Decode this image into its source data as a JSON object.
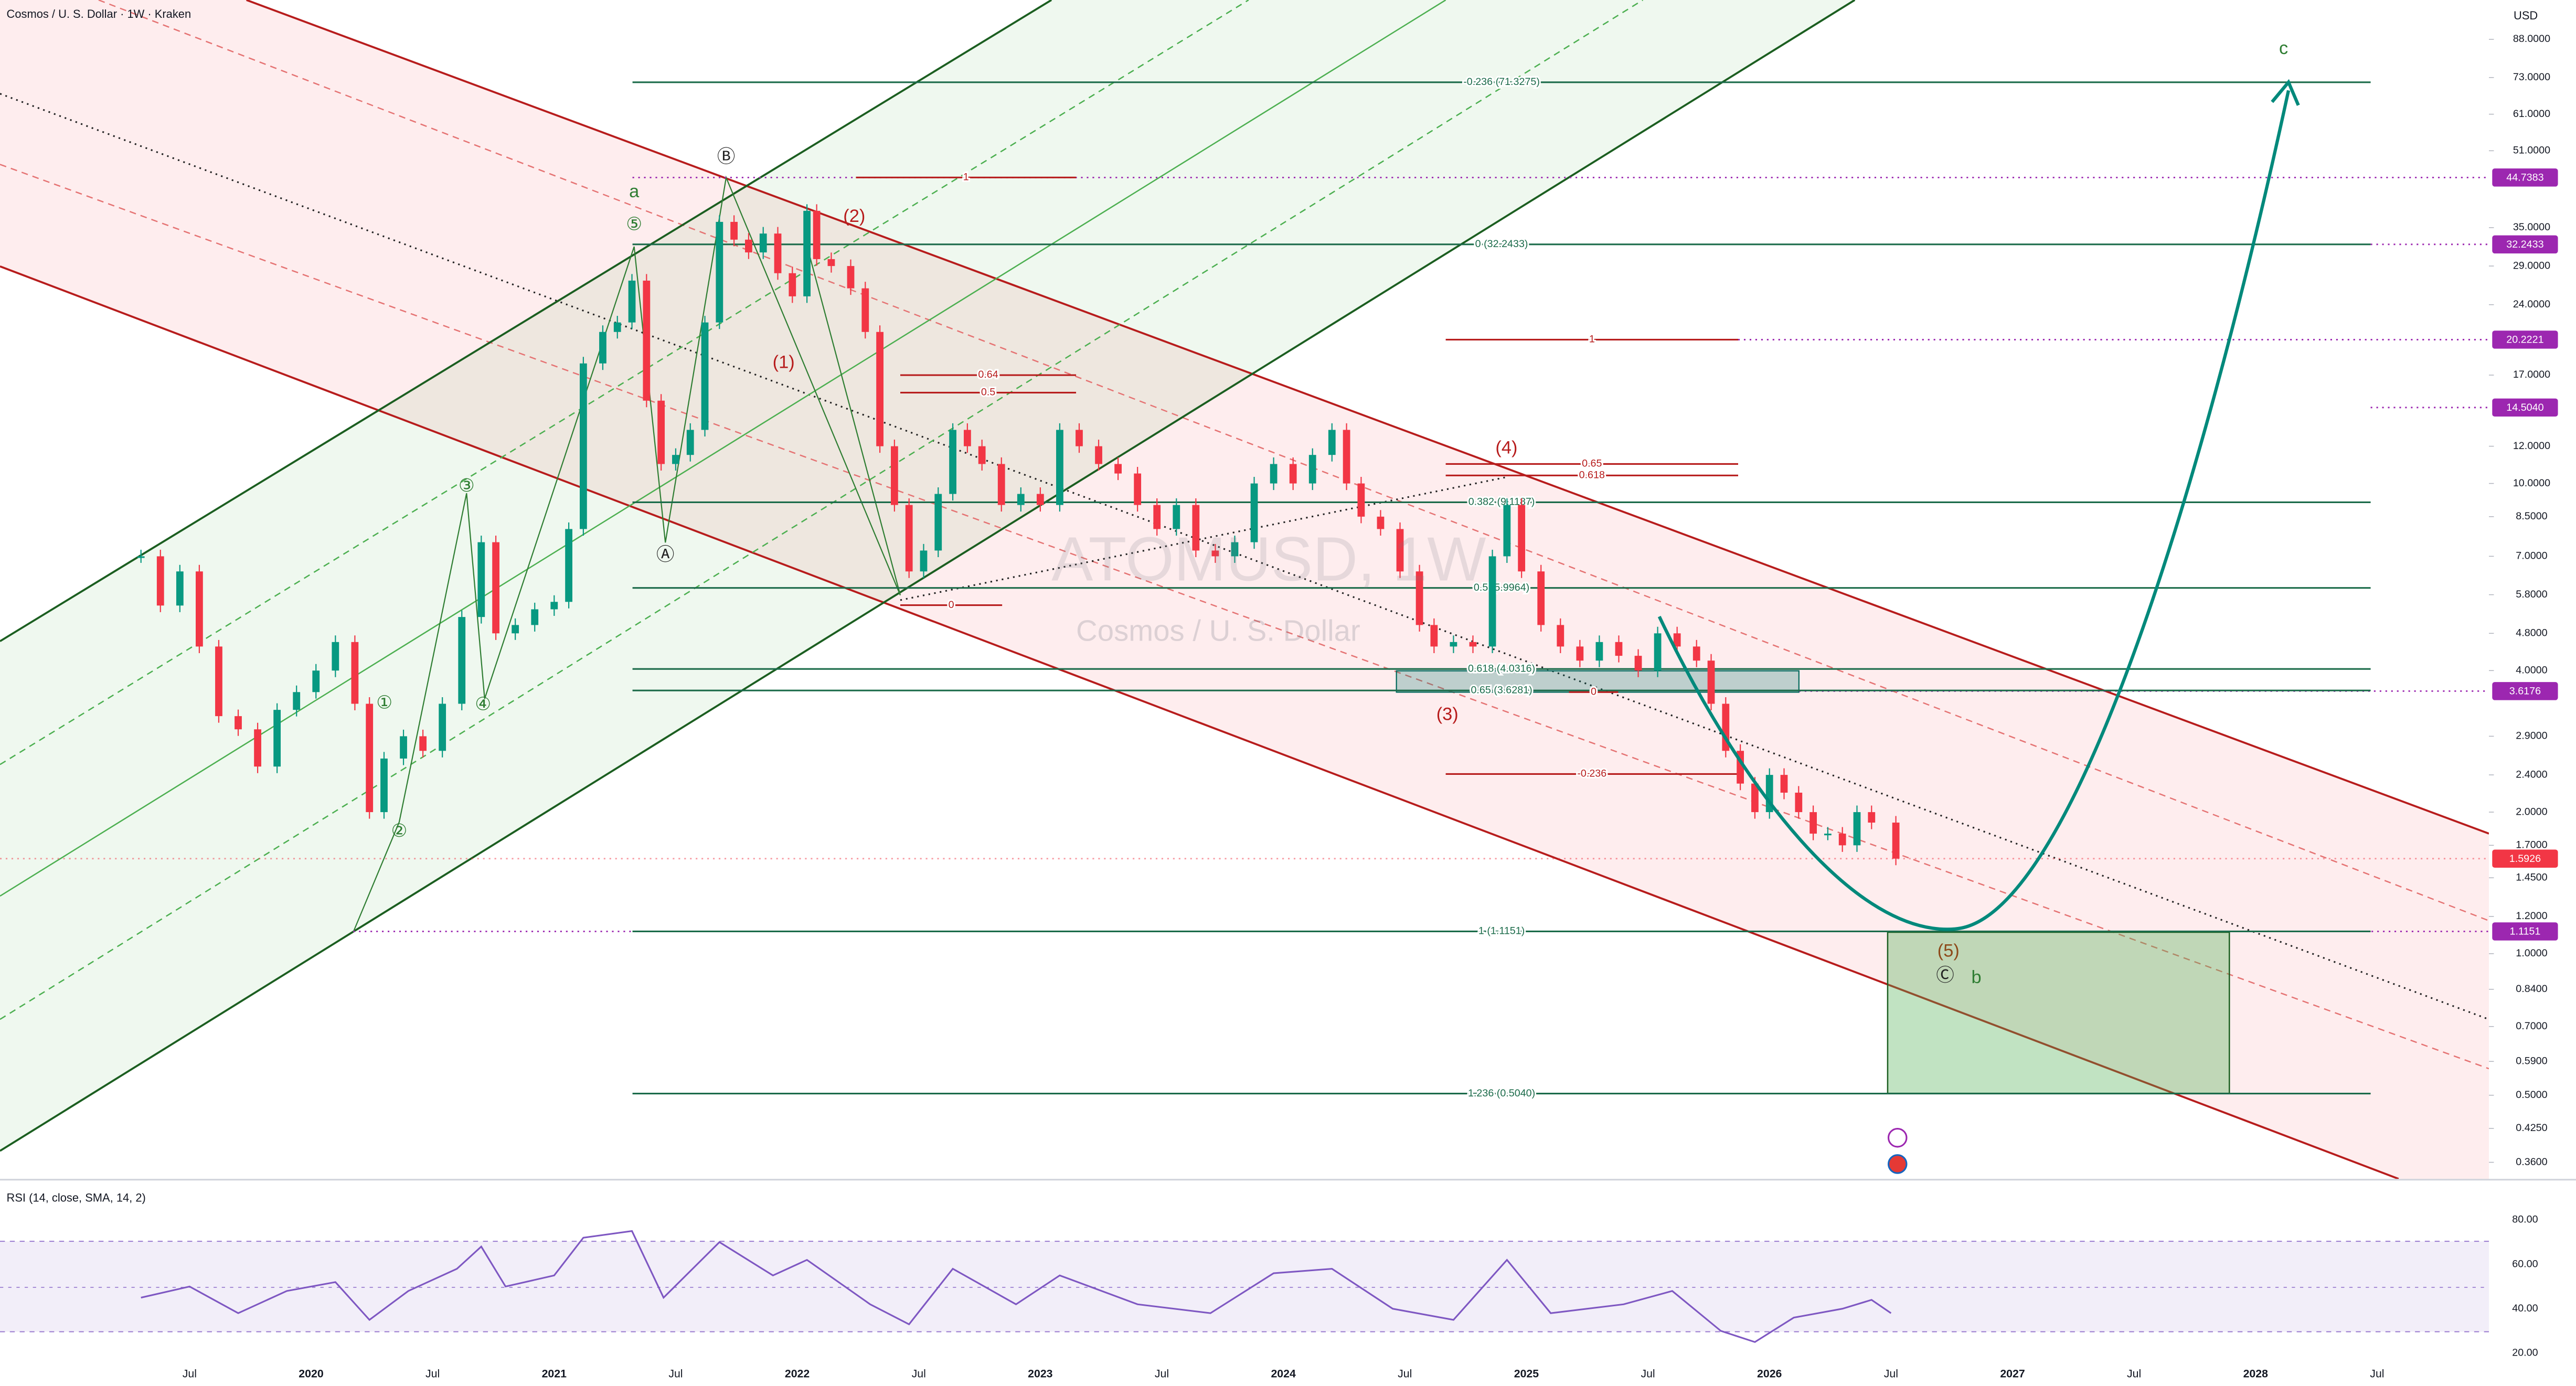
{
  "header": {
    "symbol_title": "Cosmos / U. S. Dollar · 1W · Kraken",
    "currency": "USD"
  },
  "watermark": {
    "ticker": "ATOMUSD, 1W",
    "name": "Cosmos / U. S. Dollar"
  },
  "price_axis": {
    "log": true,
    "ylim": [
      0.332,
      106.7
    ],
    "ticks": [
      {
        "value": 88,
        "label": "88.0000"
      },
      {
        "value": 73,
        "label": "73.0000"
      },
      {
        "value": 61,
        "label": "61.0000"
      },
      {
        "value": 51,
        "label": "51.0000"
      },
      {
        "value": 35,
        "label": "35.0000"
      },
      {
        "value": 29,
        "label": "29.0000"
      },
      {
        "value": 24,
        "label": "24.0000"
      },
      {
        "value": 17,
        "label": "17.0000"
      },
      {
        "value": 12,
        "label": "12.0000"
      },
      {
        "value": 10,
        "label": "10.0000"
      },
      {
        "value": 8.5,
        "label": "8.5000"
      },
      {
        "value": 7,
        "label": "7.0000"
      },
      {
        "value": 5.8,
        "label": "5.8000"
      },
      {
        "value": 4.8,
        "label": "4.8000"
      },
      {
        "value": 4,
        "label": "4.0000"
      },
      {
        "value": 2.9,
        "label": "2.9000"
      },
      {
        "value": 2.4,
        "label": "2.4000"
      },
      {
        "value": 2,
        "label": "2.0000"
      },
      {
        "value": 1.7,
        "label": "1.7000"
      },
      {
        "value": 1.45,
        "label": "1.4500"
      },
      {
        "value": 1.2,
        "label": "1.2000"
      },
      {
        "value": 1,
        "label": "1.0000"
      },
      {
        "value": 0.84,
        "label": "0.8400"
      },
      {
        "value": 0.7,
        "label": "0.7000"
      },
      {
        "value": 0.59,
        "label": "0.5900"
      },
      {
        "value": 0.5,
        "label": "0.5000"
      },
      {
        "value": 0.425,
        "label": "0.4250"
      },
      {
        "value": 0.36,
        "label": "0.3600"
      }
    ],
    "tags": [
      44.7383,
      32.2433,
      20.2221,
      {
        "value": 14.504,
        "label": "14.5040"
      },
      3.6176,
      1.5926,
      1.1151
    ],
    "tag_colors": [
      "#9c27b0",
      "#9c27b0",
      "#9c27b0",
      "#9c27b0",
      "#9c27b0",
      "#f23645",
      "#9c27b0"
    ]
  },
  "time_axis": {
    "xlim": [
      2018.72,
      2028.96
    ],
    "ticks": [
      {
        "value": 2019.5,
        "label": "Jul"
      },
      2020,
      {
        "value": 2020.5,
        "label": "Jul"
      },
      2021,
      {
        "value": 2021.5,
        "label": "Jul"
      },
      2022,
      {
        "value": 2022.5,
        "label": "Jul"
      },
      2023,
      {
        "value": 2023.5,
        "label": "Jul"
      },
      2024,
      {
        "value": 2024.5,
        "label": "Jul"
      },
      2025,
      {
        "value": 2025.5,
        "label": "Jul"
      },
      2026,
      {
        "value": 2026.5,
        "label": "Jul"
      },
      2027,
      {
        "value": 2027.5,
        "label": "Jul"
      },
      2028,
      {
        "value": 2028.5,
        "label": "Jul"
      }
    ]
  },
  "candles": {
    "up_color": "#089981",
    "down_color": "#f23645",
    "x": [
      2019.3,
      2019.38,
      2019.46,
      2019.54,
      2019.62,
      2019.7,
      2019.78,
      2019.86,
      2019.94,
      2020.02,
      2020.1,
      2020.18,
      2020.24,
      2020.3,
      2020.38,
      2020.46,
      2020.54,
      2020.62,
      2020.7,
      2020.76,
      2020.84,
      2020.92,
      2021.0,
      2021.06,
      2021.12,
      2021.2,
      2021.26,
      2021.32,
      2021.38,
      2021.44,
      2021.5,
      2021.56,
      2021.62,
      2021.68,
      2021.74,
      2021.8,
      2021.86,
      2021.92,
      2021.98,
      2022.04,
      2022.08,
      2022.14,
      2022.22,
      2022.28,
      2022.34,
      2022.4,
      2022.46,
      2022.52,
      2022.58,
      2022.64,
      2022.7,
      2022.76,
      2022.84,
      2022.92,
      2023.0,
      2023.08,
      2023.16,
      2023.24,
      2023.32,
      2023.4,
      2023.48,
      2023.56,
      2023.64,
      2023.72,
      2023.8,
      2023.88,
      2023.96,
      2024.04,
      2024.12,
      2024.2,
      2024.26,
      2024.32,
      2024.4,
      2024.48,
      2024.56,
      2024.62,
      2024.7,
      2024.78,
      2024.86,
      2024.92,
      2024.98,
      2025.06,
      2025.14,
      2025.22,
      2025.3,
      2025.38,
      2025.46,
      2025.54,
      2025.62,
      2025.7,
      2025.76,
      2025.82,
      2025.88,
      2025.94,
      2026.0,
      2026.06,
      2026.12,
      2026.18,
      2026.24,
      2026.3,
      2026.36,
      2026.42,
      2026.52
    ],
    "close": [
      7.0,
      5.5,
      6.5,
      4.5,
      3.2,
      3.0,
      2.5,
      3.3,
      3.6,
      4.0,
      4.6,
      3.4,
      2.0,
      2.6,
      2.9,
      2.7,
      3.4,
      5.2,
      7.5,
      4.8,
      5.0,
      5.4,
      5.6,
      8.0,
      18.0,
      21.0,
      22.0,
      27.0,
      15.0,
      11.0,
      11.5,
      13.0,
      22.0,
      36.0,
      33.0,
      31.0,
      34.0,
      28.0,
      25.0,
      38.0,
      30.0,
      29.0,
      26.0,
      21.0,
      12.0,
      9.0,
      6.5,
      7.2,
      9.5,
      13.0,
      12.0,
      11.0,
      9.0,
      9.5,
      9.0,
      13.0,
      12.0,
      11.0,
      10.5,
      9.0,
      8.0,
      9.0,
      7.2,
      7.0,
      7.5,
      10.0,
      11.0,
      10.0,
      11.5,
      13.0,
      10.0,
      8.5,
      8.0,
      6.5,
      5.0,
      4.5,
      4.6,
      4.5,
      7.0,
      9.0,
      6.5,
      5.0,
      4.5,
      4.2,
      4.6,
      4.3,
      4.0,
      4.8,
      4.5,
      4.2,
      3.4,
      2.7,
      2.3,
      2.0,
      2.4,
      2.2,
      2.0,
      1.8,
      1.8,
      1.7,
      2.0,
      1.9,
      1.5926
    ]
  },
  "fib_levels": [
    {
      "label": "-0.236 (71.3275)",
      "price": 71.3275,
      "color": "#1b6b4a"
    },
    {
      "label": "1",
      "price": 44.7383,
      "color": "#b71c1c"
    },
    {
      "label": "0 (32.2433)",
      "price": 32.2433,
      "color": "#1b6b4a"
    },
    {
      "label": "1",
      "price": 20.2221,
      "color": "#b71c1c"
    },
    {
      "label": "0.64",
      "price": 17.0,
      "color": "#b71c1c"
    },
    {
      "label": "0.5",
      "price": 15.6,
      "color": "#b71c1c"
    },
    {
      "label": "0.65",
      "price": 11.0,
      "color": "#b71c1c"
    },
    {
      "label": "0.618",
      "price": 10.4,
      "color": "#b71c1c"
    },
    {
      "label": "0.382 (9.1187)",
      "price": 9.1187,
      "color": "#1b6b4a"
    },
    {
      "label": "0.5 (5.9964)",
      "price": 5.9964,
      "color": "#1b6b4a"
    },
    {
      "label": "0",
      "price": 5.51,
      "color": "#b71c1c"
    },
    {
      "label": "0.618 (4.0316)",
      "price": 4.0316,
      "color": "#1b6b4a"
    },
    {
      "label": "0.65 (3.6281)",
      "price": 3.6281,
      "color": "#1b6b4a"
    },
    {
      "label": "0",
      "price": 3.6,
      "color": "#b71c1c"
    },
    {
      "label": "-0.236",
      "price": 2.41,
      "color": "#b71c1c"
    },
    {
      "label": "1 (1.1151)",
      "price": 1.1151,
      "color": "#1b6b4a"
    },
    {
      "label": "1.236 (0.5040)",
      "price": 0.504,
      "color": "#1b6b4a"
    }
  ],
  "wave_labels": [
    {
      "text": "a",
      "color": "#2e7d32"
    },
    {
      "text": "⑤",
      "color": "#2e7d32"
    },
    {
      "text": "Ⓑ",
      "color": "#222222"
    },
    {
      "text": "(2)",
      "color": "#b71c1c"
    },
    {
      "text": "(1)",
      "color": "#b71c1c"
    },
    {
      "text": "Ⓐ",
      "color": "#222222"
    },
    {
      "text": "③",
      "color": "#2e7d32"
    },
    {
      "text": "①",
      "color": "#2e7d32"
    },
    {
      "text": "④",
      "color": "#2e7d32"
    },
    {
      "text": "②",
      "color": "#2e7d32"
    },
    {
      "text": "(4)",
      "color": "#b71c1c"
    },
    {
      "text": "(3)",
      "color": "#b71c1c"
    },
    {
      "text": "(5)",
      "color": "#8d4a1a"
    },
    {
      "text": "Ⓒ",
      "color": "#222222"
    },
    {
      "text": "b",
      "color": "#2e7d32"
    },
    {
      "text": "c",
      "color": "#2e7d32"
    }
  ],
  "rsi": {
    "label": "RSI (14, close, SMA, 14, 2)",
    "color": "#7e57c2",
    "ylim": [
      16.3,
      96.3
    ],
    "ticks": [
      {
        "value": 80,
        "label": "80.00"
      },
      {
        "value": 60,
        "label": "60.00"
      },
      {
        "value": 40,
        "label": "40.00"
      },
      {
        "value": 20,
        "label": "20.00"
      }
    ],
    "x": [
      2019.3,
      2019.5,
      2019.7,
      2019.9,
      2020.1,
      2020.24,
      2020.4,
      2020.6,
      2020.7,
      2020.8,
      2021.0,
      2021.12,
      2021.32,
      2021.45,
      2021.68,
      2021.9,
      2022.04,
      2022.3,
      2022.46,
      2022.64,
      2022.9,
      2023.08,
      2023.4,
      2023.7,
      2023.96,
      2024.2,
      2024.45,
      2024.7,
      2024.92,
      2025.1,
      2025.4,
      2025.6,
      2025.8,
      2025.94,
      2026.1,
      2026.3,
      2026.42,
      2026.5
    ],
    "values": [
      45,
      50,
      38,
      48,
      52,
      35,
      48,
      58,
      68,
      50,
      55,
      72,
      75,
      45,
      70,
      55,
      62,
      42,
      33,
      58,
      42,
      55,
      42,
      38,
      56,
      58,
      40,
      35,
      62,
      38,
      42,
      48,
      30,
      25,
      36,
      40,
      44,
      38
    ]
  }
}
